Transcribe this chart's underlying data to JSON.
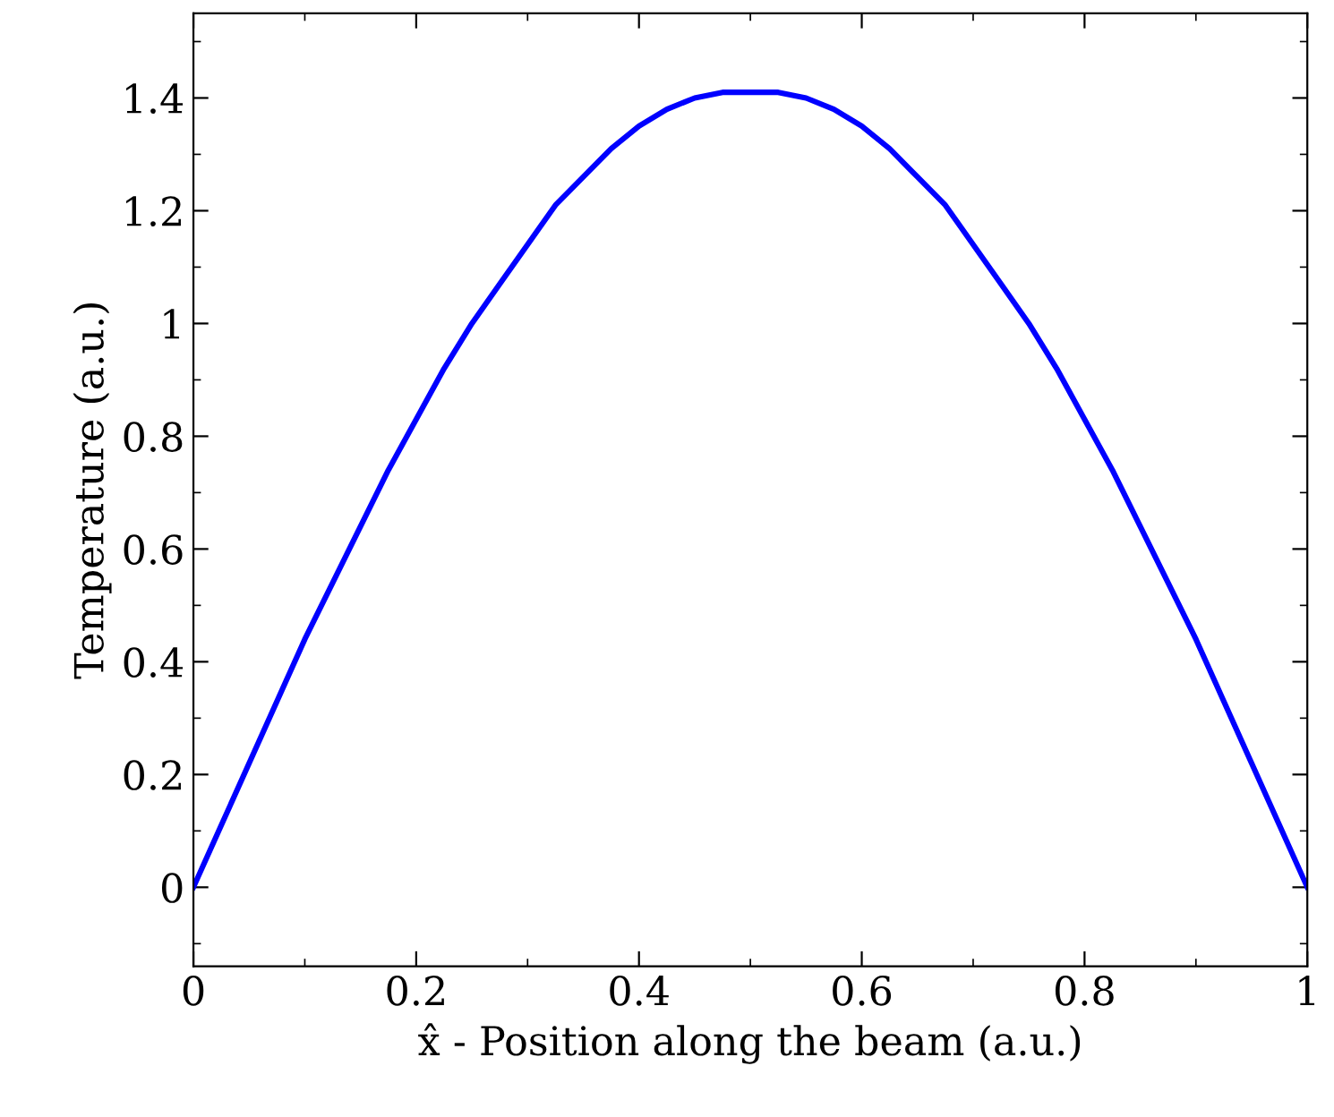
{
  "chart_data": {
    "type": "line",
    "xlabel": "x̂ - Position along the beam (a.u.)",
    "ylabel": "Temperature (a.u.)",
    "x": [
      0,
      0.025,
      0.05,
      0.075,
      0.1,
      0.125,
      0.15,
      0.175,
      0.2,
      0.225,
      0.25,
      0.275,
      0.3,
      0.325,
      0.35,
      0.375,
      0.4,
      0.425,
      0.45,
      0.475,
      0.5,
      0.525,
      0.55,
      0.575,
      0.6,
      0.625,
      0.65,
      0.675,
      0.7,
      0.725,
      0.75,
      0.775,
      0.8,
      0.825,
      0.85,
      0.875,
      0.9,
      0.925,
      0.95,
      0.975,
      1
    ],
    "series": [
      {
        "color": "#0000ff",
        "values": [
          0,
          0.11,
          0.22,
          0.33,
          0.44,
          0.54,
          0.64,
          0.74,
          0.83,
          0.92,
          1.0,
          1.07,
          1.14,
          1.21,
          1.26,
          1.31,
          1.35,
          1.38,
          1.4,
          1.41,
          1.41,
          1.41,
          1.4,
          1.38,
          1.35,
          1.31,
          1.26,
          1.21,
          1.14,
          1.07,
          1.0,
          0.92,
          0.83,
          0.74,
          0.64,
          0.54,
          0.44,
          0.33,
          0.22,
          0.11,
          0
        ]
      }
    ],
    "xlim": [
      0,
      1
    ],
    "ylim": [
      -0.14,
      1.55
    ],
    "xticks": [
      0,
      0.2,
      0.4,
      0.6,
      0.8,
      {
        "value": 1,
        "label": "1"
      }
    ],
    "yticks": [
      0,
      0.2,
      0.4,
      0.6,
      0.8,
      {
        "value": 1,
        "label": "1"
      },
      1.2,
      1.4
    ],
    "grid": false,
    "legend": false,
    "marker": "none",
    "line_style": "solid"
  }
}
